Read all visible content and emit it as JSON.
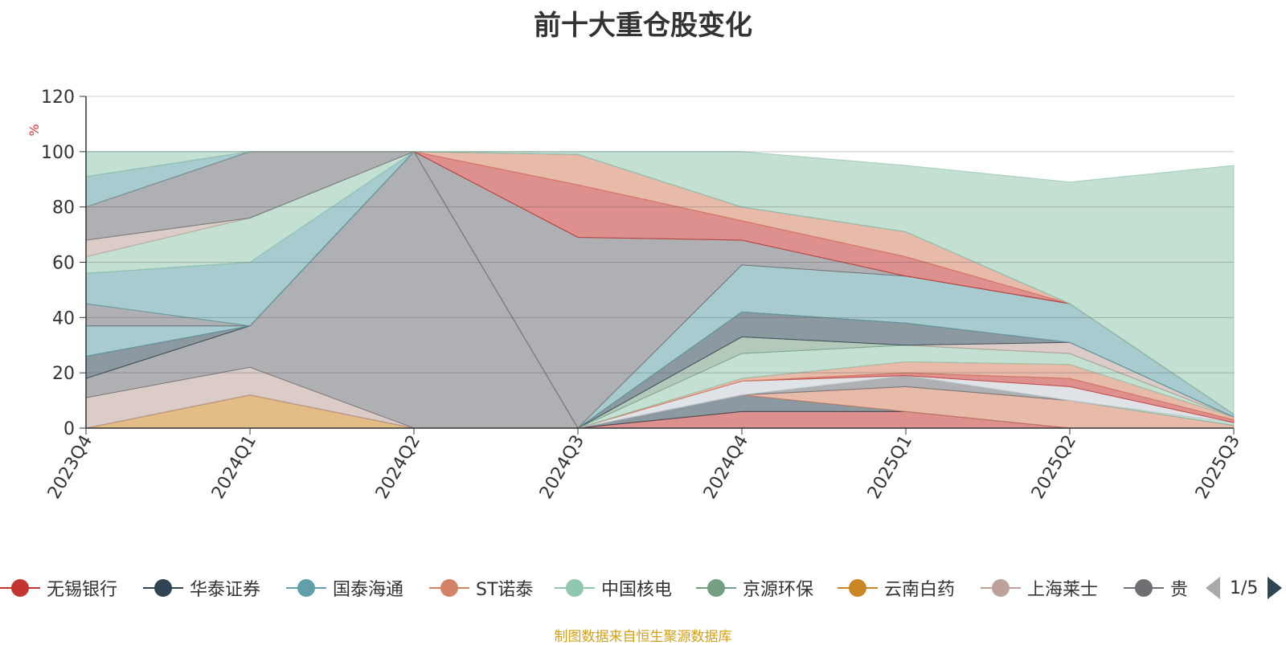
{
  "title": "前十大重仓股变化",
  "source_note": "制图数据来自恒生聚源数据库",
  "legend_pager": {
    "text": "1/5"
  },
  "chart_data": {
    "type": "area",
    "stacked": true,
    "title": "前十大重仓股变化",
    "ylabel": "%",
    "ylim": [
      0,
      120
    ],
    "yticks": [
      0,
      20,
      40,
      60,
      80,
      100,
      120
    ],
    "grid": true,
    "x": [
      "2023Q4",
      "2024Q1",
      "2024Q2",
      "2024Q3",
      "2024Q4",
      "2025Q1",
      "2025Q2",
      "2025Q3"
    ],
    "colors": [
      "#c23531",
      "#2f4554",
      "#61a0a8",
      "#d48265",
      "#91c7ae",
      "#749f83",
      "#ca8622",
      "#bda29a",
      "#6e7074",
      "#546570",
      "#c4ccd3",
      "#91c7ae"
    ],
    "series": [
      {
        "name": "云南白药",
        "color": "#ca8622",
        "values": [
          0,
          12,
          0,
          0,
          0,
          0,
          0,
          0
        ]
      },
      {
        "name": "无锡银行",
        "color": "#c23531",
        "values": [
          0,
          0,
          0,
          0,
          6,
          6,
          0,
          0
        ]
      },
      {
        "name": "华泰证券",
        "color": "#2f4554",
        "values": [
          0,
          0,
          0,
          0,
          6,
          0,
          0,
          0
        ]
      },
      {
        "name": "ST诺泰",
        "color": "#d48265",
        "values": [
          0,
          0,
          0,
          0,
          0,
          9,
          10,
          1
        ]
      },
      {
        "name": "上海莱士",
        "color": "#bda29a",
        "values": [
          11,
          10,
          0,
          0,
          0,
          0,
          0,
          0
        ]
      },
      {
        "name": "贵",
        "color": "#6e7074",
        "values": [
          7,
          15,
          100,
          0,
          0,
          4,
          0,
          0
        ]
      },
      {
        "name": "中国核电",
        "color": "#91c7ae",
        "values": [
          0,
          0,
          0,
          0,
          0,
          0,
          0,
          1
        ]
      },
      {
        "name": "",
        "color": "#c4ccd3",
        "values": [
          0,
          0,
          0,
          0,
          5,
          0,
          5,
          0
        ]
      },
      {
        "name": "",
        "color": "#c23531",
        "values": [
          0,
          0,
          0,
          0,
          0,
          1,
          3,
          1
        ]
      },
      {
        "name": "",
        "color": "#d48265",
        "values": [
          0,
          0,
          0,
          0,
          1,
          4,
          5,
          1
        ]
      },
      {
        "name": "",
        "color": "#91c7ae",
        "values": [
          0,
          0,
          0,
          0,
          9,
          6,
          4,
          0
        ]
      },
      {
        "name": "",
        "color": "#749f83",
        "values": [
          0,
          0,
          0,
          0,
          6,
          0,
          0,
          0
        ]
      },
      {
        "name": "",
        "color": "#bda29a",
        "values": [
          0,
          0,
          0,
          0,
          0,
          0,
          4,
          0
        ]
      },
      {
        "name": "",
        "color": "#2f4554",
        "values": [
          8,
          0,
          0,
          0,
          9,
          8,
          0,
          0
        ]
      },
      {
        "name": "",
        "color": "#61a0a8",
        "values": [
          11,
          0,
          0,
          0,
          0,
          0,
          0,
          0
        ]
      },
      {
        "name": "",
        "color": "#6e7074",
        "values": [
          8,
          0,
          0,
          0,
          0,
          0,
          0,
          0
        ]
      },
      {
        "name": "",
        "color": "#61a0a8",
        "values": [
          11,
          23,
          0,
          0,
          17,
          17,
          14,
          1
        ]
      },
      {
        "name": "",
        "color": "#91c7ae",
        "values": [
          6,
          16,
          0,
          0,
          0,
          0,
          0,
          0
        ]
      },
      {
        "name": "",
        "color": "#bda29a",
        "values": [
          6,
          0,
          0,
          0,
          0,
          0,
          0,
          0
        ]
      },
      {
        "name": "",
        "color": "#6e7074",
        "values": [
          12,
          24,
          0,
          69,
          9,
          0,
          0,
          0
        ]
      },
      {
        "name": "",
        "color": "#c23531",
        "values": [
          0,
          0,
          0,
          19,
          7,
          7,
          0,
          0
        ]
      },
      {
        "name": "",
        "color": "#d48265",
        "values": [
          0,
          0,
          0,
          11,
          5,
          9,
          0,
          0
        ]
      },
      {
        "name": "",
        "color": "#61a0a8",
        "values": [
          11,
          0,
          0,
          0,
          0,
          0,
          0,
          0
        ]
      },
      {
        "name": "",
        "color": "#91c7ae",
        "values": [
          9,
          0,
          0,
          1,
          20,
          24,
          44,
          90
        ]
      }
    ]
  },
  "legend": [
    {
      "label": "无锡银行",
      "color": "#c23531"
    },
    {
      "label": "华泰证券",
      "color": "#2f4554"
    },
    {
      "label": "国泰海通",
      "color": "#61a0a8"
    },
    {
      "label": "ST诺泰",
      "color": "#d48265"
    },
    {
      "label": "中国核电",
      "color": "#91c7ae"
    },
    {
      "label": "京源环保",
      "color": "#749f83"
    },
    {
      "label": "云南白药",
      "color": "#ca8622"
    },
    {
      "label": "上海莱士",
      "color": "#bda29a"
    },
    {
      "label": "贵",
      "color": "#6e7074"
    }
  ]
}
